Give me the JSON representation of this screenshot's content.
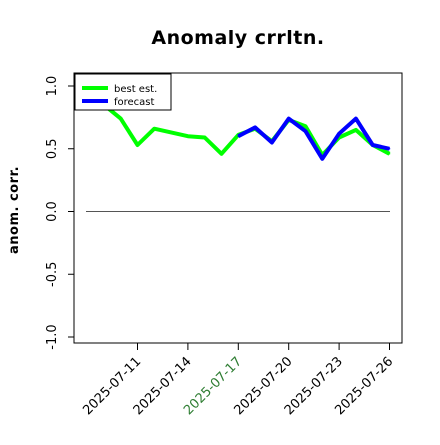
{
  "chart_data": {
    "type": "line",
    "title": "Anomaly crrltn.",
    "ylabel": "anom. corr.",
    "ylim": [
      -1.0,
      1.0
    ],
    "yticks": [
      "-1.0",
      "-0.5",
      "0.0",
      "0.5",
      "1.0"
    ],
    "x": [
      "2025-07-09",
      "2025-07-10",
      "2025-07-11",
      "2025-07-12",
      "2025-07-13",
      "2025-07-14",
      "2025-07-15",
      "2025-07-16",
      "2025-07-17",
      "2025-07-18",
      "2025-07-19",
      "2025-07-20",
      "2025-07-21",
      "2025-07-22",
      "2025-07-23",
      "2025-07-24",
      "2025-07-25",
      "2025-07-26"
    ],
    "xticks": [
      {
        "label": "2025-07-11",
        "color": "#000000"
      },
      {
        "label": "2025-07-14",
        "color": "#000000"
      },
      {
        "label": "2025-07-17",
        "color": "#2e7d32"
      },
      {
        "label": "2025-07-20",
        "color": "#000000"
      },
      {
        "label": "2025-07-23",
        "color": "#000000"
      },
      {
        "label": "2025-07-26",
        "color": "#000000"
      }
    ],
    "reference_line": 0.0,
    "legend": {
      "placement": "top-left"
    },
    "series": [
      {
        "name": "best est.",
        "color": "#00ff00",
        "x": [
          "2025-07-09",
          "2025-07-10",
          "2025-07-11",
          "2025-07-12",
          "2025-07-13",
          "2025-07-14",
          "2025-07-15",
          "2025-07-16",
          "2025-07-17",
          "2025-07-18",
          "2025-07-19",
          "2025-07-20",
          "2025-07-21",
          "2025-07-22",
          "2025-07-23",
          "2025-07-24",
          "2025-07-25",
          "2025-07-26"
        ],
        "values": [
          0.85,
          0.74,
          0.53,
          0.66,
          0.63,
          0.6,
          0.59,
          0.46,
          0.61,
          0.66,
          0.56,
          0.73,
          0.68,
          0.45,
          0.59,
          0.65,
          0.53,
          0.46
        ]
      },
      {
        "name": "forecast",
        "color": "#0000ff",
        "x": [
          "2025-07-17",
          "2025-07-18",
          "2025-07-19",
          "2025-07-20",
          "2025-07-21",
          "2025-07-22",
          "2025-07-23",
          "2025-07-24",
          "2025-07-25",
          "2025-07-26"
        ],
        "values": [
          0.6,
          0.67,
          0.55,
          0.74,
          0.64,
          0.42,
          0.62,
          0.74,
          0.53,
          0.5
        ]
      }
    ]
  }
}
